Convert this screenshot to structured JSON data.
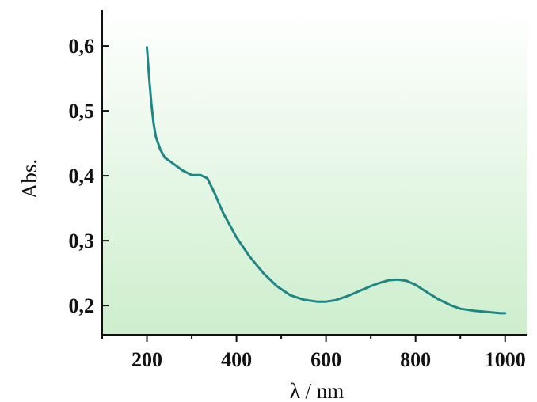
{
  "chart_data": {
    "type": "line",
    "title": "",
    "xlabel": "λ / nm",
    "ylabel": "Abs.",
    "xlim": [
      100,
      1050
    ],
    "ylim": [
      0.155,
      0.655
    ],
    "x_ticks": [
      200,
      400,
      600,
      800,
      1000
    ],
    "x_tick_labels": [
      "200",
      "400",
      "600",
      "800",
      "1000"
    ],
    "y_ticks": [
      0.2,
      0.3,
      0.4,
      0.5,
      0.6
    ],
    "y_tick_labels": [
      "0,2",
      "0,3",
      "0,4",
      "0,5",
      "0,6"
    ],
    "grid": false,
    "legend": "none",
    "colors": {
      "line": "#1f8585",
      "background_top": "#ffffff",
      "background_bottom": "#cdeecd",
      "axis": "#111111"
    },
    "series": [
      {
        "x": [
          200,
          205,
          210,
          215,
          220,
          230,
          240,
          260,
          280,
          300,
          320,
          335,
          350,
          370,
          400,
          430,
          460,
          490,
          520,
          550,
          580,
          600,
          620,
          650,
          680,
          700,
          720,
          740,
          760,
          780,
          800,
          820,
          850,
          880,
          900,
          930,
          960,
          990,
          1000
        ],
        "y": [
          0.598,
          0.55,
          0.51,
          0.48,
          0.46,
          0.44,
          0.428,
          0.418,
          0.408,
          0.401,
          0.401,
          0.396,
          0.375,
          0.343,
          0.305,
          0.275,
          0.25,
          0.23,
          0.216,
          0.209,
          0.206,
          0.206,
          0.208,
          0.215,
          0.224,
          0.23,
          0.235,
          0.239,
          0.24,
          0.238,
          0.232,
          0.223,
          0.21,
          0.2,
          0.195,
          0.192,
          0.19,
          0.188,
          0.188
        ]
      }
    ]
  }
}
